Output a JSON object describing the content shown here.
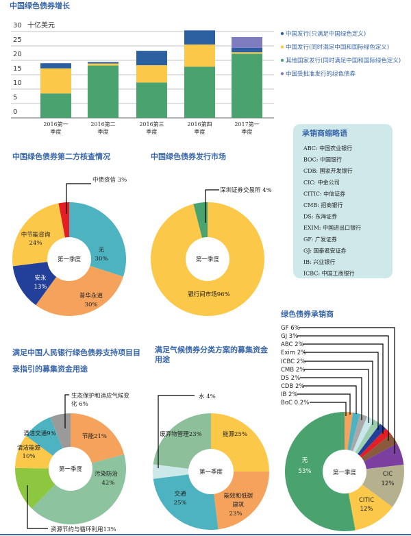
{
  "colors": {
    "title": "#3a67a8",
    "green": "#4aa36f",
    "yellow": "#fcc84a",
    "blue": "#2c5fa0",
    "purple": "#7f7bbf",
    "box": "#cfe8ea"
  },
  "center_label": "第一季度",
  "chart_data": [
    {
      "type": "bar",
      "stacked": true,
      "title": "中国绿色债券增长",
      "ylabel": "十亿美元",
      "ylim": [
        0,
        30
      ],
      "yticks": [
        "0",
        "5",
        "10",
        "15",
        "20",
        "25",
        "30"
      ],
      "grid": true,
      "legend_position": "right",
      "categories": [
        [
          "2016第一",
          "季度"
        ],
        [
          "2016第二",
          "季度"
        ],
        [
          "2016第三",
          "季度"
        ],
        [
          "2016第四",
          "季度"
        ],
        [
          "2017第一",
          "季度"
        ]
      ],
      "series": [
        {
          "name": "其他国家发行(同时满足中国和国际绿色定义)",
          "color": "#4aa36f",
          "values": [
            8.5,
            18.2,
            12.3,
            17.8,
            22.3
          ]
        },
        {
          "name": "中国发行(同时满足中国和国际绿色定义)",
          "color": "#fcc84a",
          "values": [
            8.7,
            0.7,
            6.0,
            7.7,
            0.5
          ]
        },
        {
          "name": "中国发行(只满足中国绿色定义)",
          "color": "#2c5fa0",
          "values": [
            1.8,
            0.5,
            5.0,
            4.9,
            1.5
          ]
        },
        {
          "name": "中国受批准发行的绿色债券",
          "color": "#7f7bbf",
          "values": [
            0,
            0,
            0,
            0,
            3.8
          ]
        }
      ],
      "legend_order": [
        2,
        1,
        0,
        3
      ]
    },
    {
      "type": "pie",
      "title": "中国绿色债券第二方核查情况",
      "slices": [
        {
          "label": "无",
          "pct": "30%",
          "value": 30,
          "color": "#4db3c0"
        },
        {
          "label": "普华永道",
          "pct": "30%",
          "value": 30,
          "color": "#f5a35c"
        },
        {
          "label": "安永",
          "pct": "13%",
          "value": 13,
          "color": "#223f99"
        },
        {
          "label": "中节能咨询",
          "pct": "24%",
          "value": 24,
          "color": "#fcc84a"
        },
        {
          "label": "中债资信",
          "pct": "3%",
          "value": 3,
          "color": "#e31e24"
        }
      ]
    },
    {
      "type": "pie",
      "title": "中国绿色债券发行市场",
      "slices": [
        {
          "label": "银行间市场",
          "pct": "96%",
          "value": 96,
          "color": "#fcc84a"
        },
        {
          "label": "深圳证券交易所",
          "pct": "4%",
          "value": 4,
          "color": "#4aa36f"
        }
      ]
    },
    {
      "type": "pie",
      "title": [
        "满足中国人民银行绿色债券支持项目目",
        "录指引的募集资金用途"
      ],
      "slices": [
        {
          "label": "节能",
          "pct": "21%",
          "value": 21,
          "color": "#f5a35c"
        },
        {
          "label": "污染防治",
          "pct": "42%",
          "value": 42,
          "color": "#8dc39e"
        },
        {
          "label": "资源节约与循环利用",
          "pct": "13%",
          "value": 13,
          "color": "#8dc63f"
        },
        {
          "label": "清洁能源",
          "pct": "10%",
          "value": 10,
          "color": "#fcc84a"
        },
        {
          "label": "清洁交通",
          "pct": "9%",
          "value": 9,
          "color": "#4db3c0"
        },
        {
          "label": [
            "生态保护和适应气候变",
            "化"
          ],
          "pct": "6%",
          "value": 6,
          "color": "#9a9a9a"
        }
      ]
    },
    {
      "type": "pie",
      "title": [
        "满足气候债券分类方案的募集资金",
        "用途"
      ],
      "slices": [
        {
          "label": "能源",
          "pct": "25%",
          "value": 25,
          "color": "#fcc84a"
        },
        {
          "label": [
            "能效和低碳",
            "建筑"
          ],
          "pct": "23%",
          "value": 23,
          "color": "#f5a35c"
        },
        {
          "label": "交通",
          "pct": "25%",
          "value": 25,
          "color": "#4db3c0"
        },
        {
          "label": "水",
          "pct": "4%",
          "value": 4,
          "color": "#cde8e8"
        },
        {
          "label": "废弃物管理",
          "pct": "23%",
          "value": 23,
          "color": "#8dbf9a"
        }
      ]
    },
    {
      "type": "pie",
      "title": "绿色债券承销商",
      "slices": [
        {
          "label": "BoC",
          "pct": "0.2%",
          "value": 0.2,
          "color": "#f5a35c"
        },
        {
          "label": "IB",
          "pct": "2%",
          "value": 2,
          "color": "#f5a35c"
        },
        {
          "label": "CDB",
          "pct": "2%",
          "value": 2,
          "color": "#4db3c0"
        },
        {
          "label": "DS",
          "pct": "2%",
          "value": 2,
          "color": "#a8a8a8"
        },
        {
          "label": "CMB",
          "pct": "2%",
          "value": 2,
          "color": "#c9e6ea"
        },
        {
          "label": "ICBC",
          "pct": "2%",
          "value": 2,
          "color": "#9ccfb0"
        },
        {
          "label": "Exim",
          "pct": "2%",
          "value": 2,
          "color": "#223f99"
        },
        {
          "label": "ABC",
          "pct": "2%",
          "value": 2,
          "color": "#e31e24"
        },
        {
          "label": "GJ",
          "pct": "3%",
          "value": 3,
          "color": "#8a5a3c"
        },
        {
          "label": "GF",
          "pct": "6%",
          "value": 6,
          "color": "#7b3fa0"
        },
        {
          "label": "CIC",
          "pct": "12%",
          "value": 12,
          "color": "#b5b08e"
        },
        {
          "label": "CITIC",
          "pct": "12%",
          "value": 12,
          "color": "#fcc84a"
        },
        {
          "label": "无",
          "pct": "53%",
          "value": 53,
          "color": "#4aa36f"
        }
      ]
    }
  ],
  "abbreviations": {
    "title": "承销商缩略语",
    "items": [
      "ABC: 中国农业银行",
      "BOC: 中国银行",
      "CDB: 国家开发银行",
      "CIC: 中金公司",
      "CITIC: 中信证券",
      "CMB: 招商银行",
      "DS: 东海证券",
      "EXIM: 中国进出口银行",
      "GF: 广发证券",
      "GJ: 国泰君安证券",
      "IB: 兴业银行",
      "ICBC: 中国工商银行"
    ]
  }
}
